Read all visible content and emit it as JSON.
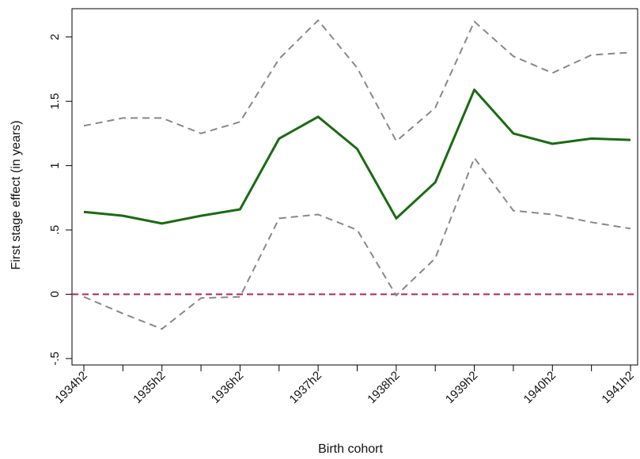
{
  "chart_data": {
    "type": "line",
    "xlabel": "Birth cohort",
    "ylabel": "First stage effect (in years)",
    "x_ticks": [
      "1934h2",
      "1935h2",
      "1936h2",
      "1937h2",
      "1938h2",
      "1939h2",
      "1940h2",
      "1941h2"
    ],
    "y_ticks": [
      {
        "value": -0.5,
        "label": "-.5"
      },
      {
        "value": 0,
        "label": "0"
      },
      {
        "value": 0.5,
        "label": ".5"
      },
      {
        "value": 1,
        "label": "1"
      },
      {
        "value": 1.5,
        "label": "1.5"
      },
      {
        "value": 2,
        "label": "2"
      }
    ],
    "x_range": [
      0,
      14
    ],
    "ylim": [
      -0.55,
      2.22
    ],
    "grid": false,
    "series": [
      {
        "role": "estimate",
        "color": "#1a6b12",
        "style": "solid",
        "x": [
          0,
          1,
          2,
          3,
          4,
          5,
          6,
          7,
          8,
          9,
          10,
          11,
          12,
          13,
          14
        ],
        "y": [
          0.64,
          0.61,
          0.55,
          0.61,
          0.66,
          1.21,
          1.38,
          1.13,
          0.59,
          0.87,
          1.59,
          1.25,
          1.17,
          1.21,
          1.2
        ]
      },
      {
        "role": "upper-ci",
        "color": "#888888",
        "style": "dashed",
        "x": [
          0,
          1,
          2,
          3,
          4,
          5,
          6,
          7,
          8,
          9,
          10,
          11,
          12,
          13,
          14
        ],
        "y": [
          1.31,
          1.37,
          1.37,
          1.25,
          1.34,
          1.83,
          2.13,
          1.76,
          1.19,
          1.45,
          2.12,
          1.85,
          1.72,
          1.86,
          1.88
        ]
      },
      {
        "role": "lower-ci",
        "color": "#888888",
        "style": "dashed",
        "x": [
          0,
          1,
          2,
          3,
          4,
          5,
          6,
          7,
          8,
          9,
          10,
          11,
          12,
          13,
          14
        ],
        "y": [
          -0.02,
          -0.15,
          -0.27,
          -0.03,
          -0.02,
          0.59,
          0.62,
          0.5,
          -0.01,
          0.28,
          1.06,
          0.65,
          0.62,
          0.56,
          0.51
        ]
      }
    ],
    "reference_line": {
      "y": 0,
      "color": "#b0235a",
      "style": "dashed"
    }
  }
}
